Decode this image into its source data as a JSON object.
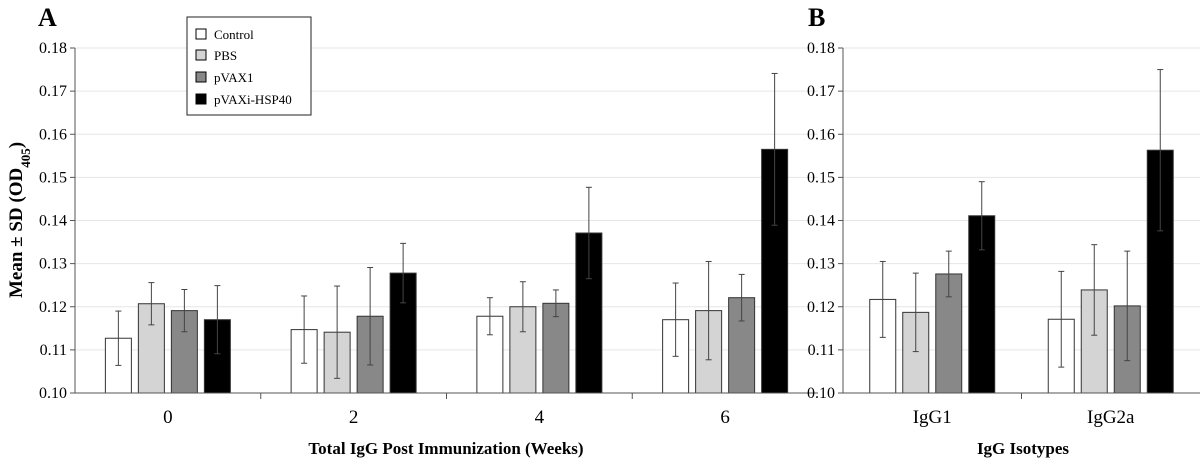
{
  "colors": {
    "Control": "#ffffff",
    "PBS": "#d4d4d4",
    "pVAX1": "#888888",
    "pVAXi-HSP40": "#000000",
    "grid": "#e6e6e6",
    "axis": "#555555"
  },
  "ylabel": {
    "main": "Mean ± SD (OD",
    "sub": "405",
    "close": ")"
  },
  "legend": [
    "Control",
    "PBS",
    "pVAX1",
    "pVAXi-HSP40"
  ],
  "chart_data": [
    {
      "type": "bar",
      "panel": "A",
      "title": "A",
      "xlabel": "Total IgG Post Immunization  (Weeks)",
      "ylabel": "Mean ± SD (OD405)",
      "ylim": [
        0.1,
        0.18
      ],
      "yticks": [
        "0.10",
        "0.11",
        "0.12",
        "0.13",
        "0.14",
        "0.15",
        "0.16",
        "0.17",
        "0.18"
      ],
      "grid": true,
      "legend_position": "top-left",
      "categories": [
        "0",
        "2",
        "4",
        "6"
      ],
      "series": [
        {
          "name": "Control",
          "values": [
            0.1127,
            0.1147,
            0.1178,
            0.117
          ],
          "sd": [
            0.0063,
            0.0078,
            0.0043,
            0.0085
          ]
        },
        {
          "name": "PBS",
          "values": [
            0.1207,
            0.1141,
            0.12,
            0.1191
          ],
          "sd": [
            0.0049,
            0.0107,
            0.0058,
            0.0114
          ]
        },
        {
          "name": "pVAX1",
          "values": [
            0.1191,
            0.1178,
            0.1208,
            0.1221
          ],
          "sd": [
            0.0049,
            0.0113,
            0.0031,
            0.0054
          ]
        },
        {
          "name": "pVAXi-HSP40",
          "values": [
            0.117,
            0.1278,
            0.1371,
            0.1565
          ],
          "sd": [
            0.0079,
            0.0069,
            0.0106,
            0.0176
          ]
        }
      ]
    },
    {
      "type": "bar",
      "panel": "B",
      "title": "B",
      "xlabel": "IgG Isotypes",
      "ylabel": "",
      "ylim": [
        0.1,
        0.18
      ],
      "yticks": [
        "0.10",
        "0.11",
        "0.12",
        "0.13",
        "0.14",
        "0.15",
        "0.16",
        "0.17",
        "0.18"
      ],
      "grid": true,
      "categories": [
        "IgG1",
        "IgG2a"
      ],
      "series": [
        {
          "name": "Control",
          "values": [
            0.1217,
            0.1171
          ],
          "sd": [
            0.0088,
            0.0111
          ]
        },
        {
          "name": "PBS",
          "values": [
            0.1187,
            0.1239
          ],
          "sd": [
            0.0091,
            0.0105
          ]
        },
        {
          "name": "pVAX1",
          "values": [
            0.1276,
            0.1202
          ],
          "sd": [
            0.0053,
            0.0127
          ]
        },
        {
          "name": "pVAXi-HSP40",
          "values": [
            0.1411,
            0.1563
          ],
          "sd": [
            0.0079,
            0.0187
          ]
        }
      ]
    }
  ]
}
